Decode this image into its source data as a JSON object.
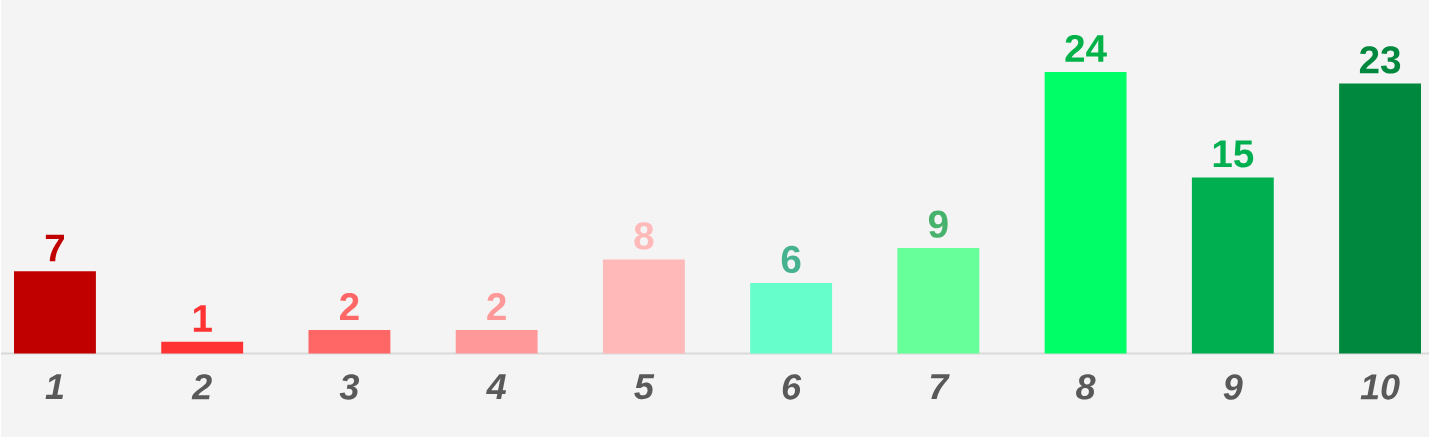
{
  "chart_data": {
    "type": "bar",
    "categories": [
      "1",
      "2",
      "3",
      "4",
      "5",
      "6",
      "7",
      "8",
      "9",
      "10"
    ],
    "values": [
      7,
      1,
      2,
      2,
      8,
      6,
      9,
      24,
      15,
      23
    ],
    "value_labels": [
      "7",
      "1",
      "2",
      "2",
      "8",
      "6",
      "9",
      "24",
      "15",
      "23"
    ],
    "colors": [
      "#c00000",
      "#ff3333",
      "#ff6666",
      "#ff9999",
      "#ffb9b9",
      "#66ffcc",
      "#66ff99",
      "#00ff66",
      "#00b050",
      "#00883e"
    ]
  }
}
